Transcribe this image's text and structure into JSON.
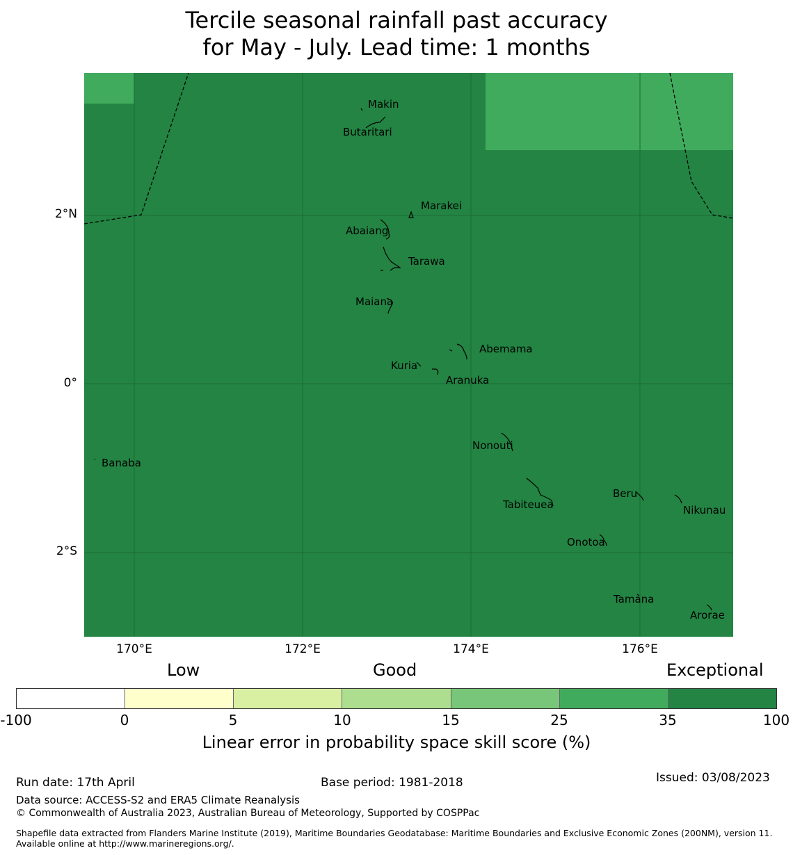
{
  "title": {
    "line1": "Tercile seasonal rainfall past accuracy",
    "line2": "for May - July. Lead time: 1 months"
  },
  "map": {
    "lat_ticks": [
      "2°N",
      "0°",
      "2°S"
    ],
    "lon_ticks": [
      "170°E",
      "172°E",
      "174°E",
      "176°E"
    ],
    "places": [
      "Makin",
      "Butaritari",
      "Marakei",
      "Abaiang",
      "Tarawa",
      "Maiana",
      "Abemama",
      "Kuria",
      "Aranuka",
      "Nonouti",
      "Banaba",
      "Tabiteuea",
      "Beru",
      "Nikunau",
      "Onotoa",
      "Tamana",
      "Arorae"
    ],
    "colors": {
      "exceptional": "#238443",
      "very_good": "#41ab5d"
    }
  },
  "legend": {
    "categories": [
      "Low",
      "Good",
      "Exceptional"
    ],
    "ticks": [
      "-100",
      "0",
      "5",
      "10",
      "15",
      "25",
      "35",
      "100"
    ],
    "colors": [
      "#ffffff",
      "#ffffcc",
      "#d9f0a3",
      "#addd8e",
      "#78c679",
      "#41ab5d",
      "#238443"
    ],
    "label": "Linear error in probability space skill score (%)"
  },
  "footer": {
    "run_date": "Run date: 17th April",
    "base_period": "Base period: 1981-2018",
    "issued": "Issued: 03/08/2023",
    "data_source": "Data source: ACCESS-S2 and ERA5 Climate Reanalysis",
    "copyright": "© Commonwealth of Australia 2023, Australian Bureau of Meteorology, Supported by COSPPac",
    "shapefile": "Shapefile data extracted from Flanders Marine Institute (2019), Maritime Boundaries Geodatabase: Maritime Boundaries and Exclusive Economic Zones (200NM), version 11. Available online at http://www.marineregions.org/."
  }
}
